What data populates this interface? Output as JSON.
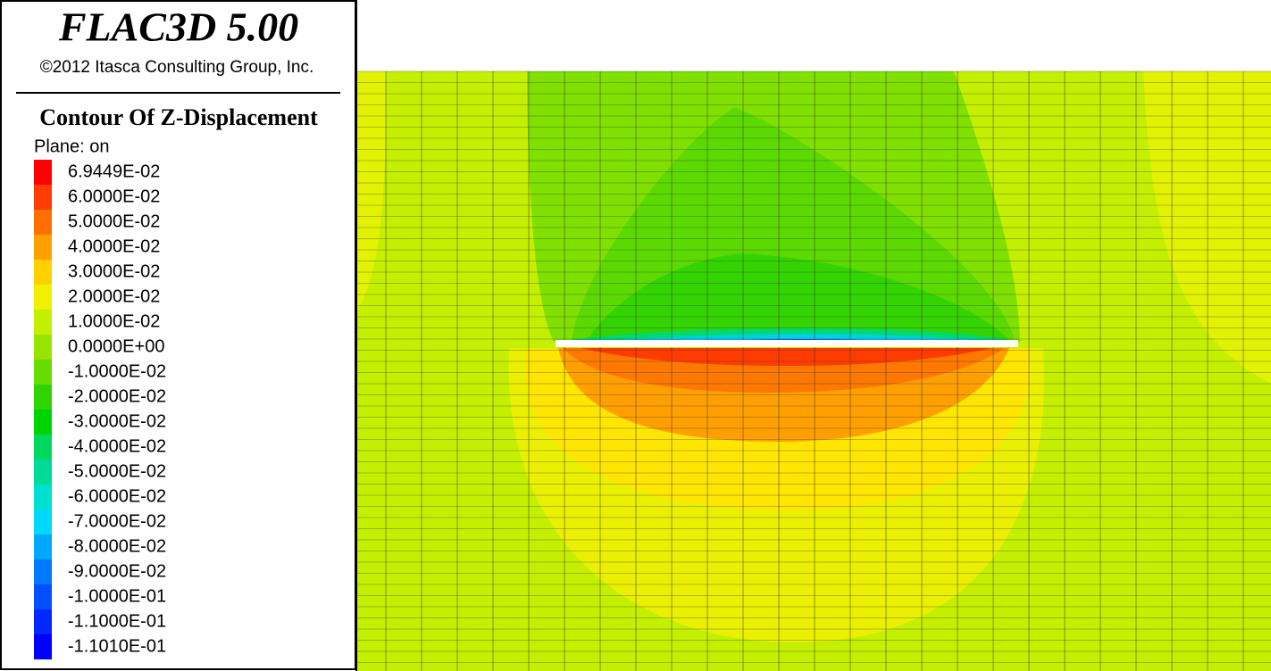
{
  "header": {
    "title": "FLAC3D 5.00",
    "copyright": "©2012 Itasca Consulting Group, Inc."
  },
  "legend": {
    "title": "Contour Of Z-Displacement",
    "plane": "Plane: on",
    "entries": [
      {
        "label": "6.9449E-02",
        "color": "#ff0000"
      },
      {
        "label": "6.0000E-02",
        "color": "#ff3c00"
      },
      {
        "label": "5.0000E-02",
        "color": "#ff7000"
      },
      {
        "label": "4.0000E-02",
        "color": "#ffa000"
      },
      {
        "label": "3.0000E-02",
        "color": "#ffd000"
      },
      {
        "label": "2.0000E-02",
        "color": "#f0f000"
      },
      {
        "label": "1.0000E-02",
        "color": "#c4f000"
      },
      {
        "label": "0.0000E+00",
        "color": "#96e400"
      },
      {
        "label": "-1.0000E-02",
        "color": "#66dc00"
      },
      {
        "label": "-2.0000E-02",
        "color": "#30d400"
      },
      {
        "label": "-3.0000E-02",
        "color": "#00d400"
      },
      {
        "label": "-4.0000E-02",
        "color": "#00d860"
      },
      {
        "label": "-5.0000E-02",
        "color": "#00dc98"
      },
      {
        "label": "-6.0000E-02",
        "color": "#00e0d0"
      },
      {
        "label": "-7.0000E-02",
        "color": "#00d8ff"
      },
      {
        "label": "-8.0000E-02",
        "color": "#00a8ff"
      },
      {
        "label": "-9.0000E-02",
        "color": "#0078ff"
      },
      {
        "label": "-1.0000E-01",
        "color": "#0050ff"
      },
      {
        "label": "-1.1000E-01",
        "color": "#0028ff"
      },
      {
        "label": "-1.1010E-01",
        "color": "#0000ff"
      }
    ]
  }
}
